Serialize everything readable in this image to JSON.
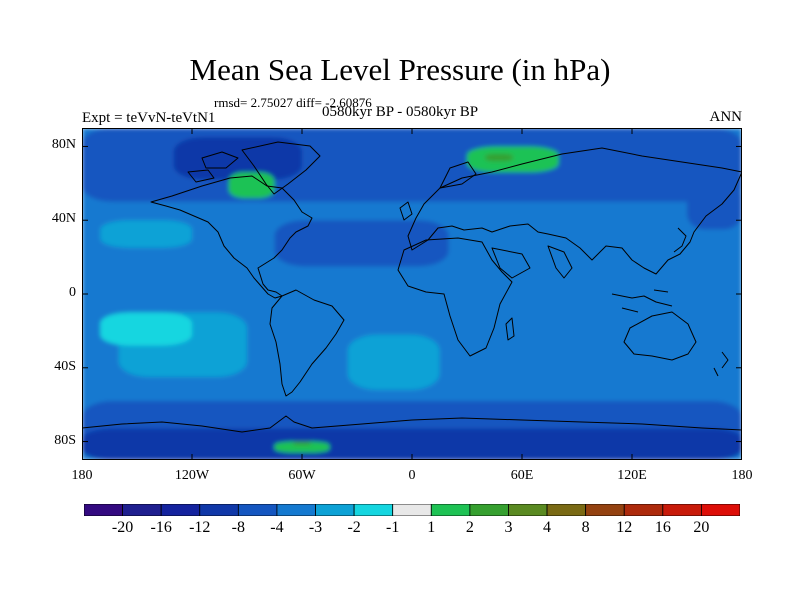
{
  "title": "Mean Sea Level Pressure (in hPa)",
  "stats": "rmsd= 2.75027 diff= -2.60876",
  "experiment": "Expt = teVvN-teVtN1",
  "period": "0580kyr BP - 0580kyr BP",
  "season": "ANN",
  "y_axis": {
    "ticks": [
      {
        "lat": 80,
        "label": "80N"
      },
      {
        "lat": 40,
        "label": "40N"
      },
      {
        "lat": 0,
        "label": "0"
      },
      {
        "lat": -40,
        "label": "40S"
      },
      {
        "lat": -80,
        "label": "80S"
      }
    ]
  },
  "x_axis": {
    "ticks": [
      {
        "lon": -180,
        "label": "180"
      },
      {
        "lon": -120,
        "label": "120W"
      },
      {
        "lon": -60,
        "label": "60W"
      },
      {
        "lon": 0,
        "label": "0"
      },
      {
        "lon": 60,
        "label": "60E"
      },
      {
        "lon": 120,
        "label": "120E"
      },
      {
        "lon": 180,
        "label": "180"
      }
    ]
  },
  "colorbar": {
    "boundaries": [
      "-20",
      "-16",
      "-12",
      "-8",
      "-4",
      "-3",
      "-2",
      "-1",
      "1",
      "2",
      "3",
      "4",
      "8",
      "12",
      "16",
      "20"
    ],
    "colors": [
      "#330a80",
      "#1f1f8f",
      "#14239e",
      "#1038a8",
      "#1456c0",
      "#1479d0",
      "#0ea2d6",
      "#15d6e0",
      "#e8e8e8",
      "#1ec254",
      "#36a030",
      "#5a8a22",
      "#7a6a14",
      "#944210",
      "#ad2a0c",
      "#c81a0a",
      "#dd0e08"
    ]
  },
  "map_field": {
    "background_level": "-3",
    "regions": [
      {
        "level": "-4",
        "desc": "subpolar belt north",
        "lon": [
          -180,
          180
        ],
        "lat": [
          50,
          90
        ]
      },
      {
        "level": "-4",
        "desc": "southern ocean belt",
        "lon": [
          -180,
          180
        ],
        "lat": [
          -90,
          -58
        ]
      },
      {
        "level": "-4",
        "desc": "north pacific",
        "lon": [
          150,
          180
        ],
        "lat": [
          35,
          60
        ]
      },
      {
        "level": "-4",
        "desc": "north atlantic tongue",
        "lon": [
          -75,
          20
        ],
        "lat": [
          15,
          40
        ]
      },
      {
        "level": "-8",
        "desc": "antarctic coast",
        "lon": [
          -180,
          180
        ],
        "lat": [
          -90,
          -73
        ]
      },
      {
        "level": "-8",
        "desc": "canadian arctic",
        "lon": [
          -130,
          -60
        ],
        "lat": [
          62,
          85
        ]
      },
      {
        "level": "-2",
        "desc": "south pacific high",
        "lon": [
          -160,
          -90
        ],
        "lat": [
          -45,
          -10
        ]
      },
      {
        "level": "-2",
        "desc": "south atlantic high",
        "lon": [
          -35,
          15
        ],
        "lat": [
          -52,
          -22
        ]
      },
      {
        "level": "-2",
        "desc": "north pacific high",
        "lon": [
          -170,
          -120
        ],
        "lat": [
          25,
          40
        ]
      },
      {
        "level": "-1",
        "desc": "central south pacific",
        "lon": [
          -170,
          -120
        ],
        "lat": [
          -28,
          -10
        ]
      },
      {
        "level": "1",
        "desc": "hudson bay area",
        "lon": [
          -100,
          -75
        ],
        "lat": [
          52,
          66
        ]
      },
      {
        "level": "1",
        "desc": "north siberia",
        "lon": [
          30,
          80
        ],
        "lat": [
          66,
          80
        ]
      },
      {
        "level": "2",
        "desc": "siberian spot",
        "lon": [
          40,
          55
        ],
        "lat": [
          72,
          76
        ]
      },
      {
        "level": "1",
        "desc": "antarctic spot",
        "lon": [
          -75,
          -45
        ],
        "lat": [
          -86,
          -80
        ]
      },
      {
        "level": "2",
        "desc": "antarctic green spot",
        "lon": [
          -65,
          -55
        ],
        "lat": [
          -82,
          -80
        ]
      }
    ]
  }
}
